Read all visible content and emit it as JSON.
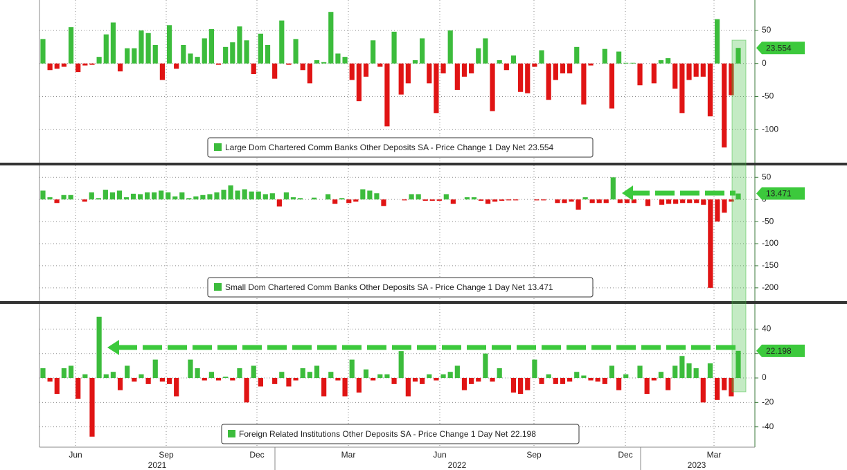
{
  "chart_data": [
    {
      "type": "bar",
      "series": [
        {
          "name": "Large Dom Chartered Comm Banks Other Deposits SA - Price Change 1 Day Net",
          "color": "#3cbc3c",
          "negative_color": "#e01414",
          "values": [
            37,
            -10,
            -8,
            -5,
            55,
            -13,
            -3,
            -2,
            10,
            44,
            62,
            -12,
            23,
            23,
            50,
            46,
            28,
            -25,
            58,
            -8,
            28,
            15,
            10,
            38,
            52,
            -2,
            25,
            32,
            56,
            35,
            -16,
            45,
            28,
            -23,
            65,
            -2,
            37,
            -10,
            -30,
            5,
            2,
            78,
            15,
            10,
            -25,
            -57,
            -20,
            35,
            -5,
            -95,
            48,
            -47,
            -30,
            5,
            38,
            -30,
            -75,
            -15,
            50,
            -40,
            -20,
            -15,
            23,
            38,
            -72,
            5,
            -10,
            12,
            -43,
            -45,
            -5,
            20,
            -55,
            -25,
            -15,
            -15,
            25,
            -62,
            -3,
            0,
            22,
            -68,
            18,
            1,
            1,
            -33,
            0,
            -30,
            5,
            8,
            -38,
            -75,
            -25,
            -20,
            -20,
            -80,
            67,
            -127,
            -48,
            23.554
          ]
        }
      ],
      "ylim": [
        -150,
        96
      ],
      "yticks": [
        50,
        0,
        -50,
        -100
      ],
      "grid": true
    },
    {
      "type": "bar",
      "series": [
        {
          "name": "Small Dom Chartered Comm Banks Other Deposits SA - Price Change 1 Day Net",
          "color": "#3cbc3c",
          "negative_color": "#e01414",
          "values": [
            20,
            5,
            -8,
            10,
            10,
            0,
            -5,
            16,
            3,
            22,
            16,
            20,
            5,
            13,
            12,
            16,
            16,
            20,
            16,
            7,
            16,
            3,
            7,
            10,
            12,
            16,
            22,
            32,
            20,
            23,
            18,
            18,
            12,
            14,
            -16,
            16,
            5,
            3,
            0,
            4,
            0,
            12,
            -10,
            3,
            -8,
            -5,
            23,
            20,
            14,
            -15,
            0,
            0,
            -2,
            12,
            12,
            -3,
            -3,
            -3,
            12,
            -10,
            0,
            5,
            5,
            -3,
            -10,
            -5,
            -3,
            -2,
            -2,
            0,
            0,
            -2,
            -2,
            0,
            -8,
            -8,
            -5,
            -23,
            5,
            -8,
            -8,
            -8,
            50,
            -8,
            -8,
            -8,
            0,
            -15,
            0,
            -12,
            -10,
            -10,
            -8,
            -8,
            -8,
            -12,
            -200,
            -50,
            -30,
            -5,
            13.471
          ]
        }
      ],
      "ylim": [
        -230,
        77
      ],
      "yticks": [
        50,
        0,
        -50,
        -100,
        -150,
        -200
      ],
      "grid": true
    },
    {
      "type": "bar",
      "series": [
        {
          "name": "Foreign Related Institutions Other Deposits SA - Price Change 1 Day Net",
          "color": "#3cbc3c",
          "negative_color": "#e01414",
          "values": [
            8,
            -3,
            -13,
            8,
            10,
            -17,
            3,
            -48,
            50,
            3,
            5,
            -10,
            10,
            -3,
            3,
            -5,
            15,
            -3,
            -5,
            -15,
            0,
            15,
            8,
            -2,
            5,
            -2,
            1,
            -2,
            8,
            -20,
            10,
            -7,
            0,
            -5,
            5,
            -7,
            -2,
            8,
            5,
            10,
            -15,
            5,
            -2,
            -15,
            15,
            -12,
            7,
            -2,
            3,
            3,
            -5,
            22,
            -15,
            -3,
            -5,
            3,
            -2,
            3,
            5,
            10,
            -10,
            -5,
            -3,
            20,
            -3,
            8,
            0,
            -12,
            -13,
            -10,
            15,
            -5,
            3,
            -5,
            -5,
            -3,
            5,
            2,
            -2,
            -3,
            -5,
            10,
            -10,
            3,
            0,
            10,
            -13,
            -2,
            5,
            -10,
            10,
            18,
            12,
            8,
            -20,
            12,
            -18,
            -10,
            -15,
            22.198
          ]
        }
      ],
      "ylim": [
        -56.6,
        60.6
      ],
      "yticks": [
        40,
        20,
        0,
        -20,
        -40
      ],
      "grid": true
    }
  ],
  "x_axis": {
    "months": [
      "Jun",
      "Sep",
      "Dec",
      "Mar",
      "Jun",
      "Sep",
      "Dec",
      "Mar"
    ],
    "years": [
      "2021",
      "2022",
      "2023"
    ]
  }
}
